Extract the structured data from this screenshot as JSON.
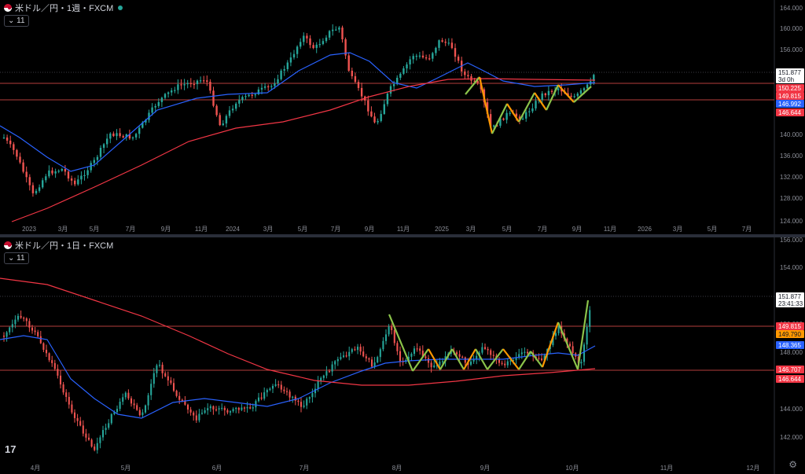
{
  "colors": {
    "bg": "#000000",
    "up": "#26a69a",
    "down": "#ef5350",
    "ma_short": "#2962ff",
    "ma_long": "#f23645",
    "zigzag_green": "#8bc34a",
    "zigzag_orange": "#ff9800",
    "hline": "#ef5350",
    "grid": "#1b1e27",
    "axis_text": "#8a8d96"
  },
  "top": {
    "title": "米ドル／円・1週・FXCM",
    "indicator_badge": "11",
    "x_labels": [
      "2023",
      "3月",
      "5月",
      "7月",
      "9月",
      "11月",
      "2024",
      "3月",
      "5月",
      "7月",
      "9月",
      "11月",
      "2025",
      "3月",
      "5月",
      "7月",
      "9月",
      "11月",
      "2026",
      "3月",
      "5月",
      "7月"
    ],
    "y_labels": [
      "164.000",
      "160.000",
      "156.000",
      "152.000",
      "148.000",
      "144.000",
      "140.000",
      "136.000",
      "132.000",
      "128.000",
      "124.000"
    ],
    "price_tags": [
      {
        "text": "151.877",
        "sub": "3d 0h",
        "style": "white"
      },
      {
        "text": "150.225",
        "style": "red"
      },
      {
        "text": "149.815",
        "style": "red"
      },
      {
        "text": "146.992",
        "style": "blue"
      },
      {
        "text": "146.644",
        "style": "red"
      }
    ]
  },
  "bottom": {
    "title": "米ドル／円・1日・FXCM",
    "indicator_badge": "11",
    "x_labels": [
      "4月",
      "5月",
      "6月",
      "7月",
      "8月",
      "9月",
      "10月",
      "11月",
      "12月"
    ],
    "y_labels": [
      "156.000",
      "154.000",
      "152.000",
      "150.000",
      "148.000",
      "146.000",
      "144.000",
      "142.000"
    ],
    "price_tags": [
      {
        "text": "151.877",
        "sub": "23:41:33",
        "style": "white"
      },
      {
        "text": "149.815",
        "style": "red"
      },
      {
        "text": "149.790",
        "style": "orange"
      },
      {
        "text": "148.365",
        "style": "blue"
      },
      {
        "text": "146.707",
        "style": "red"
      },
      {
        "text": "146.644",
        "style": "red"
      }
    ]
  },
  "tv_logo": "17"
}
